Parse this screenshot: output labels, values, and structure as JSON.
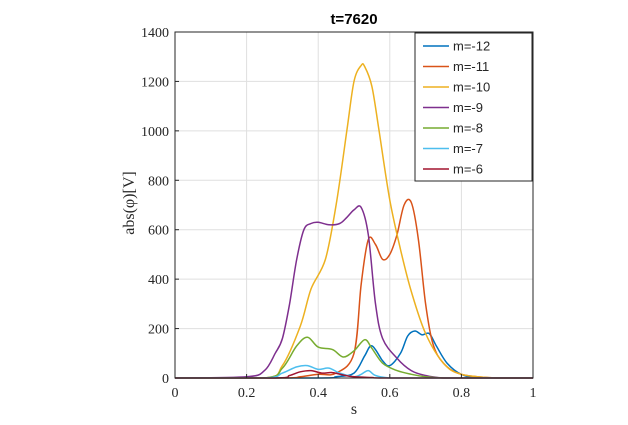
{
  "chart_data": {
    "type": "line",
    "title": "t=7620",
    "xlabel": "s",
    "ylabel": "abs(φ)[V]",
    "xlim": [
      0,
      1
    ],
    "ylim": [
      0,
      1400
    ],
    "xticks": [
      0,
      0.2,
      0.4,
      0.6,
      0.8,
      1
    ],
    "xtick_labels": [
      "0",
      "0.2",
      "0.4",
      "0.6",
      "0.8",
      "1"
    ],
    "yticks": [
      0,
      200,
      400,
      600,
      800,
      1000,
      1200,
      1400
    ],
    "ytick_labels": [
      "0",
      "200",
      "400",
      "600",
      "800",
      "1000",
      "1200",
      "1400"
    ],
    "grid": true,
    "legend_position": "top-right",
    "series": [
      {
        "name": "m=-12",
        "color": "#0072BD",
        "x": [
          0,
          0.4,
          0.45,
          0.5,
          0.53,
          0.55,
          0.58,
          0.6,
          0.63,
          0.65,
          0.67,
          0.69,
          0.71,
          0.73,
          0.76,
          0.8,
          0.85,
          1
        ],
        "y": [
          0,
          0,
          5,
          20,
          90,
          130,
          70,
          50,
          100,
          170,
          190,
          175,
          180,
          130,
          60,
          15,
          2,
          0
        ]
      },
      {
        "name": "m=-11",
        "color": "#D95319",
        "x": [
          0,
          0.3,
          0.35,
          0.4,
          0.45,
          0.5,
          0.52,
          0.54,
          0.56,
          0.58,
          0.6,
          0.62,
          0.64,
          0.66,
          0.68,
          0.7,
          0.72,
          0.75,
          0.8,
          0.9,
          1
        ],
        "y": [
          0,
          0,
          5,
          15,
          20,
          100,
          380,
          560,
          540,
          480,
          500,
          580,
          700,
          710,
          560,
          300,
          140,
          60,
          15,
          0,
          0
        ]
      },
      {
        "name": "m=-10",
        "color": "#EDB120",
        "x": [
          0,
          0.25,
          0.3,
          0.35,
          0.38,
          0.42,
          0.45,
          0.48,
          0.5,
          0.52,
          0.53,
          0.55,
          0.57,
          0.6,
          0.63,
          0.66,
          0.7,
          0.75,
          0.8,
          0.9,
          1
        ],
        "y": [
          0,
          0,
          50,
          210,
          360,
          480,
          700,
          1000,
          1200,
          1265,
          1260,
          1180,
          1000,
          720,
          520,
          350,
          180,
          60,
          15,
          0,
          0
        ]
      },
      {
        "name": "m=-9",
        "color": "#7E2F8E",
        "x": [
          0,
          0.2,
          0.25,
          0.28,
          0.3,
          0.32,
          0.34,
          0.36,
          0.38,
          0.4,
          0.43,
          0.46,
          0.48,
          0.5,
          0.52,
          0.54,
          0.56,
          0.58,
          0.62,
          0.66,
          0.7,
          0.75,
          0.8,
          1
        ],
        "y": [
          0,
          5,
          30,
          100,
          160,
          300,
          480,
          600,
          625,
          630,
          620,
          625,
          650,
          680,
          690,
          580,
          300,
          160,
          80,
          30,
          10,
          0,
          0,
          0
        ]
      },
      {
        "name": "m=-8",
        "color": "#77AC30",
        "x": [
          0,
          0.25,
          0.3,
          0.34,
          0.37,
          0.4,
          0.44,
          0.47,
          0.5,
          0.53,
          0.55,
          0.58,
          0.62,
          0.66,
          0.7,
          0.75,
          0.8,
          1
        ],
        "y": [
          0,
          0,
          40,
          130,
          165,
          125,
          115,
          85,
          110,
          155,
          120,
          60,
          30,
          15,
          5,
          0,
          0,
          0
        ]
      },
      {
        "name": "m=-7",
        "color": "#4DBEEE",
        "x": [
          0,
          0.25,
          0.3,
          0.34,
          0.37,
          0.4,
          0.43,
          0.46,
          0.5,
          0.52,
          0.54,
          0.56,
          0.6,
          0.65,
          1
        ],
        "y": [
          0,
          0,
          20,
          45,
          50,
          35,
          40,
          20,
          5,
          15,
          30,
          10,
          0,
          0,
          0
        ]
      },
      {
        "name": "m=-6",
        "color": "#A2142F",
        "x": [
          0,
          0.28,
          0.32,
          0.35,
          0.38,
          0.41,
          0.44,
          0.47,
          0.5,
          0.55,
          0.6,
          1
        ],
        "y": [
          0,
          0,
          10,
          25,
          30,
          20,
          22,
          12,
          5,
          2,
          0,
          0
        ]
      }
    ]
  }
}
